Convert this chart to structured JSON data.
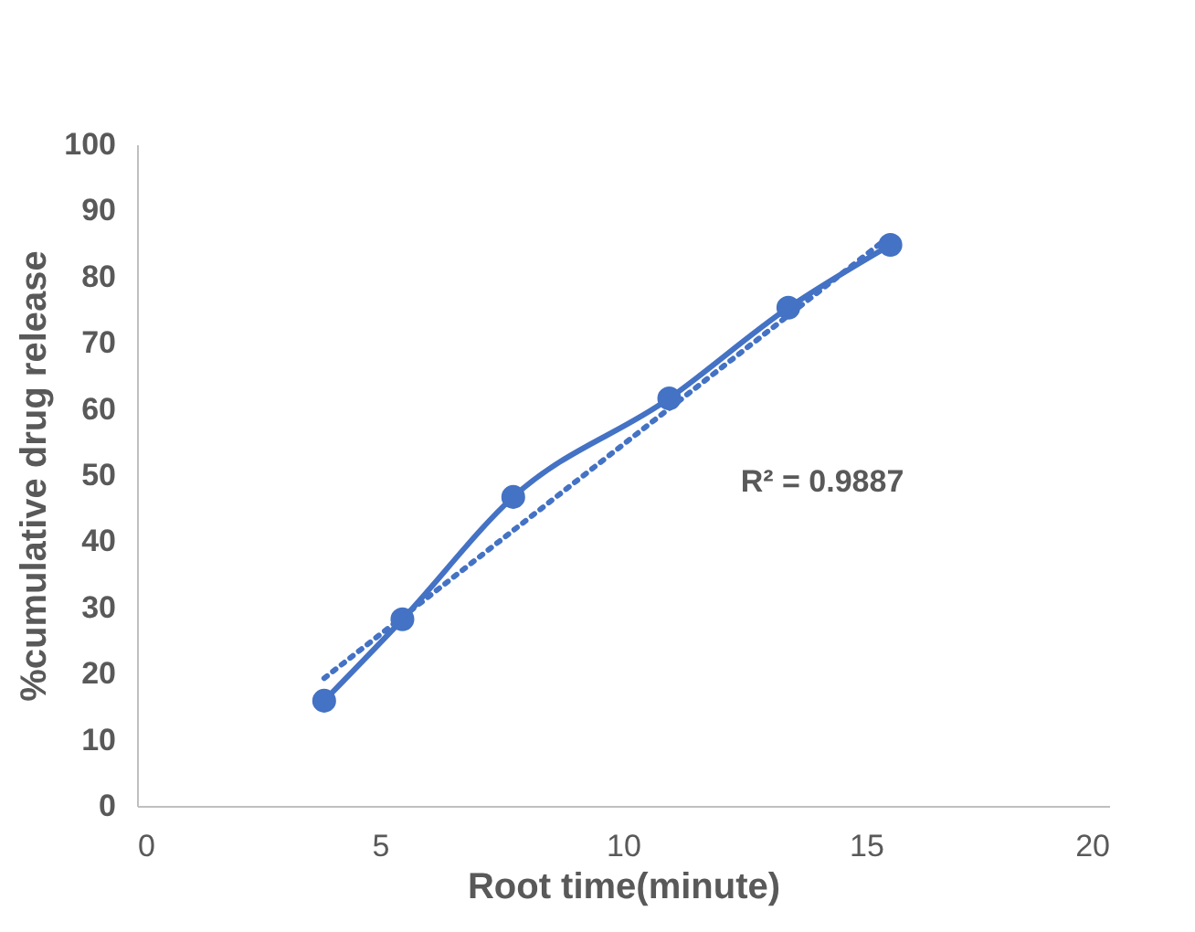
{
  "chart_data": {
    "type": "line",
    "xlabel": "Root time(minute)",
    "ylabel": "%cumulative drug release",
    "xlim": [
      0,
      20
    ],
    "xticks": [
      0,
      5,
      10,
      15,
      20
    ],
    "ylim": [
      0,
      100
    ],
    "yticks": [
      0,
      10,
      20,
      30,
      40,
      50,
      60,
      70,
      80,
      90,
      100
    ],
    "grid": false,
    "annotations": [
      "R² = 0.9887"
    ],
    "series": [
      {
        "color": "#4472c4",
        "x": [
          3.85,
          5.46,
          7.74,
          10.95,
          13.4,
          15.5
        ],
        "values": [
          15.9,
          28.2,
          46.7,
          61.6,
          75.3,
          84.8
        ],
        "marker": "circle",
        "line_style": "solid"
      },
      {
        "type": "line",
        "color": "#4472c4",
        "x": [
          3.85,
          15.5
        ],
        "values": [
          19.3,
          86.2
        ],
        "marker": "none",
        "line_style": "dotted"
      }
    ]
  }
}
